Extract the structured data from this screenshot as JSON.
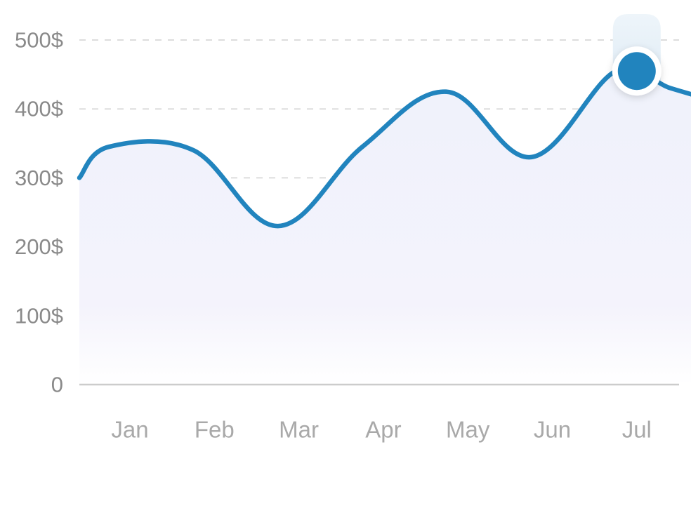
{
  "chart_data": {
    "type": "area",
    "categories": [
      "Jan",
      "Feb",
      "Mar",
      "Apr",
      "May",
      "Jun",
      "Jul"
    ],
    "x": [
      0.0,
      0.35,
      1.35,
      2.35,
      3.35,
      4.35,
      5.35,
      6.35,
      7.0,
      7.7
    ],
    "values": [
      300,
      345,
      340,
      230,
      345,
      425,
      330,
      455,
      430,
      405
    ],
    "ylim": [
      0,
      500
    ],
    "yticks": [
      "0",
      "100$",
      "200$",
      "300$",
      "400$",
      "500$"
    ],
    "ytick_values": [
      0,
      100,
      200,
      300,
      400,
      500
    ],
    "grid": true,
    "highlight": {
      "category": "Jul",
      "value": 455
    },
    "colors": {
      "line": "#2184be",
      "area_top": "#eff0fb",
      "highlight_band": "#bcd8ea",
      "grid": "#dddddd",
      "axis": "#cccccc"
    }
  }
}
